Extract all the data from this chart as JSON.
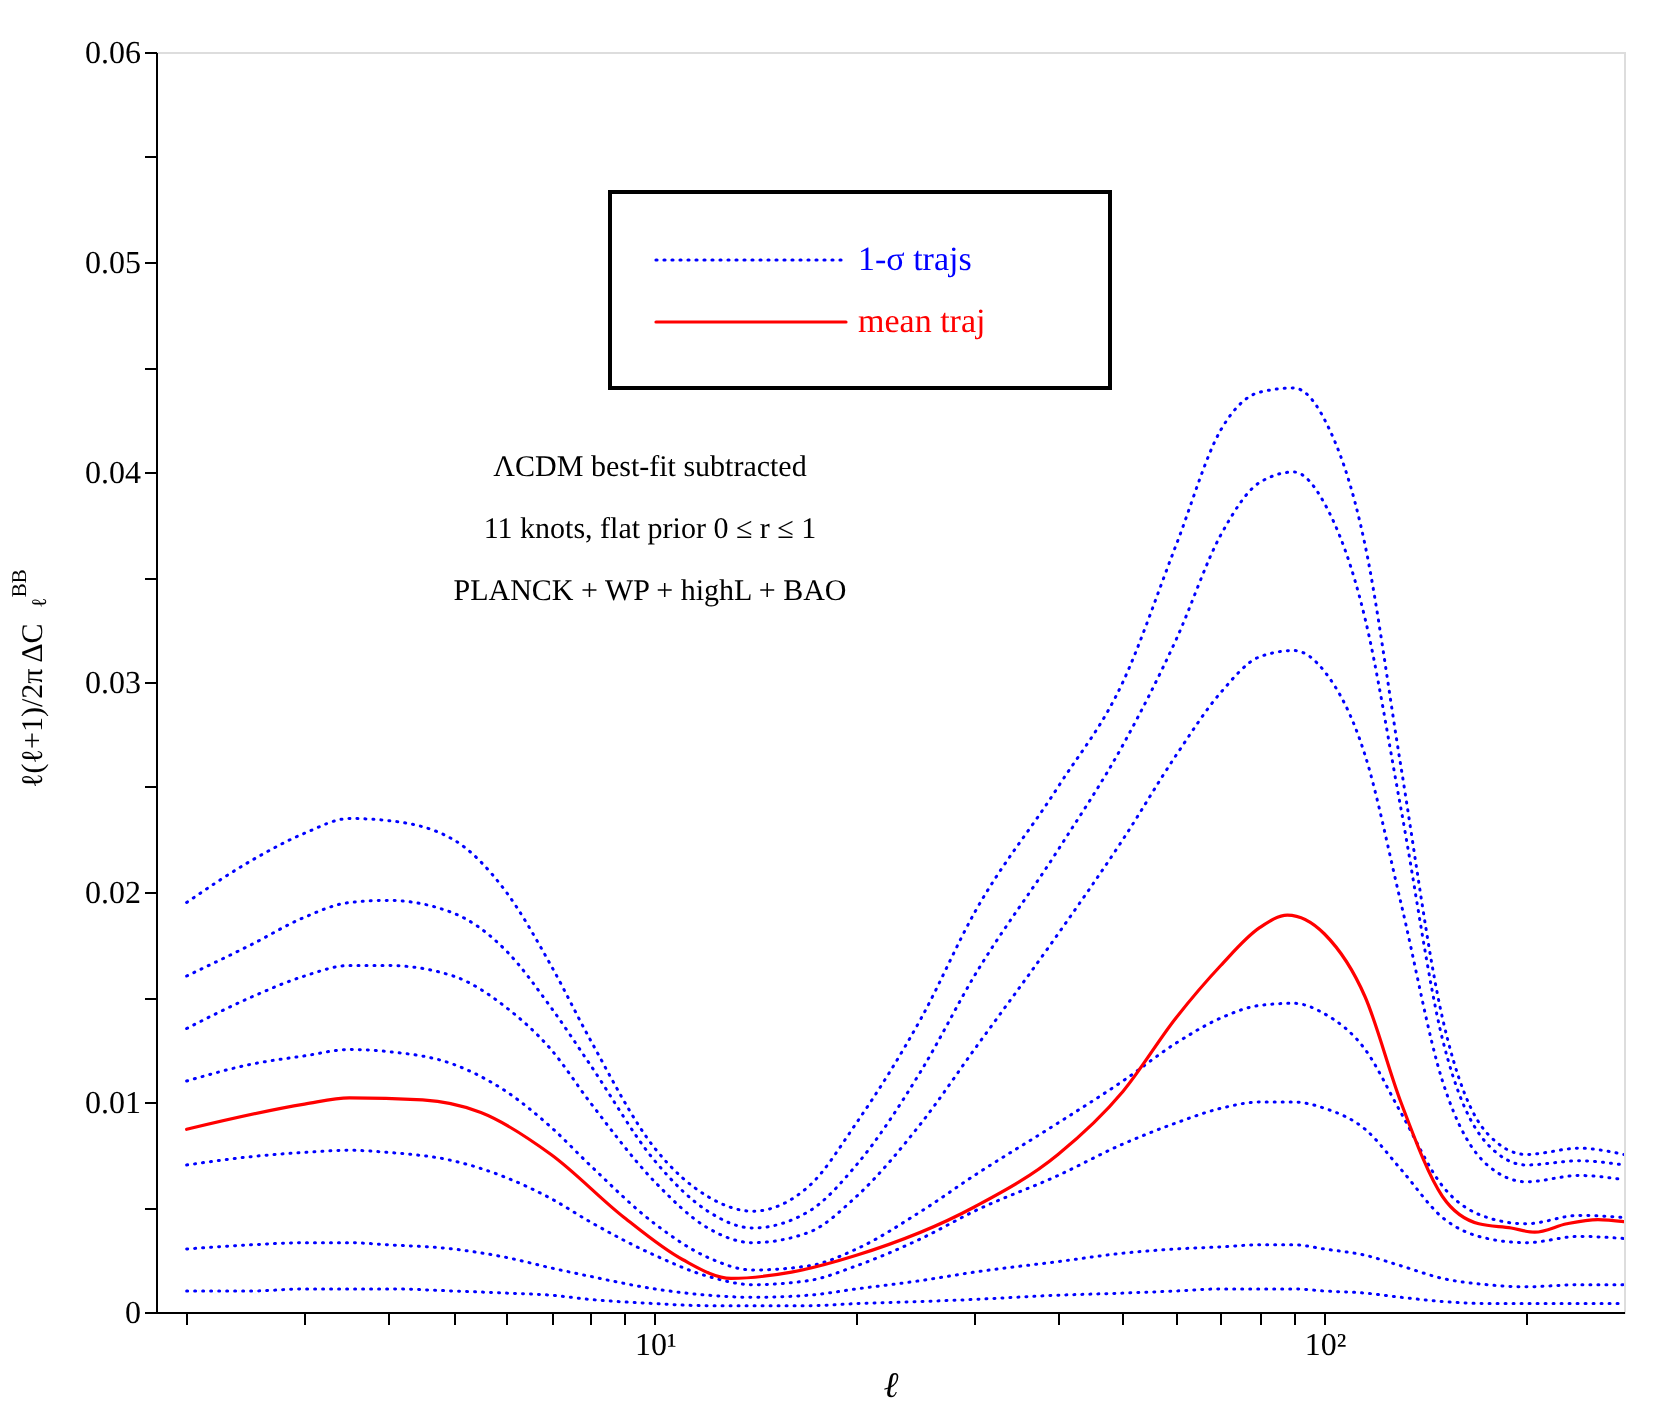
{
  "chart_data": {
    "type": "line",
    "xlabel": "ℓ",
    "ylabel": "ℓ(ℓ+1)/2π ΔC$_{ℓ}$$^{BB}$",
    "annotations": [
      "ΛCDM best-fit subtracted",
      "11 knots, flat prior 0 ≤ r ≤ 1",
      "PLANCK + WP + highL + BAO"
    ],
    "log": "x",
    "grid": false,
    "legend": "top",
    "marker": "none",
    "xlim": [
      1.8,
      280
    ],
    "ylim": [
      0,
      0.06
    ],
    "xticks": [
      {
        "value": 2,
        "label": null
      },
      {
        "value": 3,
        "label": null
      },
      {
        "value": 4,
        "label": null
      },
      {
        "value": 5,
        "label": null
      },
      {
        "value": 6,
        "label": null
      },
      {
        "value": 7,
        "label": null
      },
      {
        "value": 8,
        "label": null
      },
      {
        "value": 9,
        "label": null
      },
      {
        "value": 10,
        "label": "10¹"
      },
      {
        "value": 20,
        "label": null
      },
      {
        "value": 30,
        "label": null
      },
      {
        "value": 40,
        "label": null
      },
      {
        "value": 50,
        "label": null
      },
      {
        "value": 60,
        "label": null
      },
      {
        "value": 70,
        "label": null
      },
      {
        "value": 80,
        "label": null
      },
      {
        "value": 90,
        "label": null
      },
      {
        "value": 100,
        "label": "10²"
      },
      {
        "value": 200,
        "label": null
      }
    ],
    "yticks": [
      0,
      {
        "value": 0.005,
        "label": null
      },
      0.01,
      {
        "value": 0.015,
        "label": null
      },
      0.02,
      {
        "value": 0.025,
        "label": null
      },
      0.03,
      {
        "value": 0.035,
        "label": null
      },
      0.04,
      {
        "value": 0.045,
        "label": null
      },
      0.05,
      {
        "value": 0.055,
        "label": null
      },
      0.06
    ],
    "x": [
      2,
      2.5,
      3,
      3.5,
      4,
      5,
      6,
      7,
      8,
      10,
      12,
      14,
      17,
      20,
      25,
      30,
      40,
      50,
      60,
      70,
      80,
      90,
      100,
      115,
      130,
      150,
      175,
      200,
      240,
      280
    ],
    "series": [
      {
        "name": "1-σ trajs",
        "color": "#0000ff",
        "line_style": "dotted",
        "values": [
          0.0195,
          0.0215,
          0.0228,
          0.0235,
          0.0234,
          0.0225,
          0.02,
          0.0165,
          0.013,
          0.0078,
          0.0055,
          0.0048,
          0.006,
          0.009,
          0.014,
          0.019,
          0.025,
          0.03,
          0.0365,
          0.042,
          0.0438,
          0.044,
          0.0425,
          0.0365,
          0.026,
          0.014,
          0.0085,
          0.0075,
          0.0078,
          0.0075
        ]
      },
      {
        "color": "#0000ff",
        "line_style": "dotted",
        "values": [
          0.016,
          0.0175,
          0.0188,
          0.0195,
          0.0196,
          0.019,
          0.0172,
          0.0145,
          0.0118,
          0.0072,
          0.0048,
          0.004,
          0.0048,
          0.007,
          0.0115,
          0.016,
          0.022,
          0.027,
          0.032,
          0.037,
          0.0395,
          0.04,
          0.0385,
          0.033,
          0.024,
          0.013,
          0.008,
          0.007,
          0.0072,
          0.007
        ]
      },
      {
        "color": "#0000ff",
        "line_style": "dotted",
        "values": [
          0.0135,
          0.015,
          0.016,
          0.0165,
          0.0165,
          0.016,
          0.0145,
          0.0125,
          0.01,
          0.0062,
          0.004,
          0.0033,
          0.0038,
          0.0055,
          0.009,
          0.0125,
          0.018,
          0.0225,
          0.0265,
          0.0295,
          0.0312,
          0.0315,
          0.0305,
          0.0265,
          0.0195,
          0.011,
          0.007,
          0.0062,
          0.0065,
          0.0063
        ]
      },
      {
        "color": "#0000ff",
        "line_style": "dotted",
        "values": [
          0.011,
          0.0118,
          0.0122,
          0.0125,
          0.0124,
          0.0118,
          0.0105,
          0.0088,
          0.007,
          0.0042,
          0.0026,
          0.002,
          0.0022,
          0.003,
          0.0048,
          0.0065,
          0.009,
          0.011,
          0.0128,
          0.014,
          0.0146,
          0.0147,
          0.0142,
          0.0125,
          0.0095,
          0.006,
          0.0045,
          0.0042,
          0.0046,
          0.0045
        ]
      },
      {
        "color": "#0000ff",
        "line_style": "dotted",
        "values": [
          0.007,
          0.0074,
          0.0076,
          0.0077,
          0.0076,
          0.0072,
          0.0064,
          0.0054,
          0.0043,
          0.0027,
          0.0017,
          0.0013,
          0.0015,
          0.0022,
          0.0035,
          0.0048,
          0.0065,
          0.008,
          0.009,
          0.0097,
          0.01,
          0.01,
          0.0097,
          0.0087,
          0.0068,
          0.0045,
          0.0035,
          0.0033,
          0.0036,
          0.0035
        ]
      },
      {
        "color": "#0000ff",
        "line_style": "dotted",
        "values": [
          0.003,
          0.0032,
          0.0033,
          0.0033,
          0.0032,
          0.003,
          0.0026,
          0.0021,
          0.0017,
          0.0011,
          0.0008,
          0.0007,
          0.0008,
          0.0011,
          0.0015,
          0.0019,
          0.0024,
          0.0028,
          0.003,
          0.0031,
          0.0032,
          0.0032,
          0.003,
          0.0027,
          0.0022,
          0.0016,
          0.0013,
          0.0012,
          0.0013,
          0.0013
        ]
      },
      {
        "color": "#0000ff",
        "line_style": "dotted",
        "values": [
          0.001,
          0.001,
          0.0011,
          0.0011,
          0.0011,
          0.001,
          0.0009,
          0.0008,
          0.0006,
          0.0004,
          0.0003,
          0.0003,
          0.0003,
          0.0004,
          0.0005,
          0.0006,
          0.0008,
          0.0009,
          0.001,
          0.0011,
          0.0011,
          0.0011,
          0.001,
          0.0009,
          0.0007,
          0.0005,
          0.0004,
          0.0004,
          0.0004,
          0.0004
        ]
      },
      {
        "name": "mean traj",
        "color": "#ff0000",
        "line_style": "solid",
        "x": [
          2,
          3,
          3.5,
          4.5,
          5.5,
          7,
          9,
          11,
          13,
          16,
          20,
          30,
          40,
          50,
          60,
          70,
          80,
          88,
          100,
          115,
          130,
          150,
          170,
          190,
          206,
          230,
          256,
          280
        ],
        "values": [
          0.0087,
          0.0099,
          0.0102,
          0.0101,
          0.0095,
          0.0075,
          0.0045,
          0.0025,
          0.0016,
          0.0019,
          0.0027,
          0.005,
          0.0075,
          0.0105,
          0.014,
          0.0165,
          0.0183,
          0.0189,
          0.018,
          0.015,
          0.01,
          0.0055,
          0.0042,
          0.004,
          0.0038,
          0.0042,
          0.0044,
          0.0043
        ]
      }
    ]
  }
}
